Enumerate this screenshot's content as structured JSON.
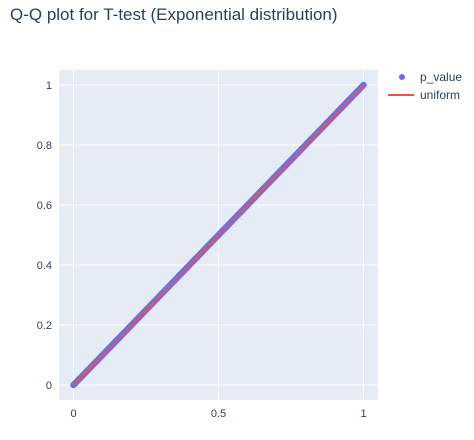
{
  "chart": {
    "title": "Q-Q plot for T-test (Exponential distribution)"
  },
  "chart_data": {
    "type": "scatter",
    "title": "Q-Q plot for T-test (Exponential distribution)",
    "xlabel": "",
    "ylabel": "",
    "xlim": [
      -0.05,
      1.05
    ],
    "ylim": [
      -0.05,
      1.05
    ],
    "x_ticks": [
      0,
      0.5,
      1
    ],
    "x_tick_labels": [
      "0",
      "0.5",
      "1"
    ],
    "y_ticks": [
      0,
      0.2,
      0.4,
      0.6,
      0.8,
      1
    ],
    "y_tick_labels": [
      "0",
      "0.2",
      "0.4",
      "0.6",
      "0.8",
      "1"
    ],
    "grid": true,
    "legend_position": "top-right",
    "plot_background": "#e5ecf6",
    "series": [
      {
        "name": "p_value",
        "mode": "markers",
        "color": "#636efa",
        "x": [
          0,
          0.05,
          0.1,
          0.15,
          0.2,
          0.25,
          0.3,
          0.35,
          0.4,
          0.45,
          0.5,
          0.55,
          0.6,
          0.65,
          0.7,
          0.75,
          0.8,
          0.85,
          0.9,
          0.95,
          1
        ],
        "y": [
          0,
          0.05,
          0.1,
          0.15,
          0.2,
          0.25,
          0.3,
          0.35,
          0.4,
          0.45,
          0.5,
          0.55,
          0.6,
          0.65,
          0.7,
          0.75,
          0.8,
          0.85,
          0.9,
          0.95,
          1
        ]
      },
      {
        "name": "uniform",
        "mode": "lines",
        "color": "#ef553b",
        "x": [
          0,
          1
        ],
        "y": [
          0,
          1
        ]
      }
    ]
  }
}
